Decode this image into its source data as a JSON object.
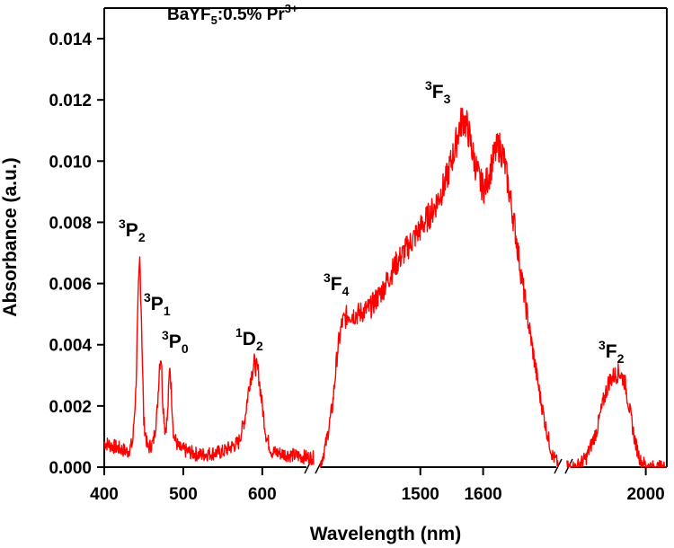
{
  "chart_data": {
    "type": "line",
    "title_parts": [
      "BaYF",
      "5",
      ":0.5% Pr",
      "3+"
    ],
    "xlabel": "Wavelength (nm)",
    "ylabel": "Absorbance (a.u.)",
    "ylim": [
      0,
      0.015
    ],
    "series_color": "#ff0000",
    "x_tick_labels": [
      "400",
      "500",
      "600",
      "1500",
      "1600",
      "2000"
    ],
    "y_tick_labels": [
      "0.000",
      "0.002",
      "0.004",
      "0.006",
      "0.008",
      "0.010",
      "0.012",
      "0.014"
    ],
    "y_ticks": [
      0,
      0.002,
      0.004,
      0.006,
      0.008,
      0.01,
      0.012,
      0.014
    ],
    "segments": [
      {
        "name": "visible",
        "xlim": [
          400,
          665
        ],
        "ticks": [
          400,
          500,
          600
        ],
        "points": [
          [
            400,
            0.0008
          ],
          [
            420,
            0.0006
          ],
          [
            430,
            0.0005
          ],
          [
            436,
            0.0008
          ],
          [
            440,
            0.0025
          ],
          [
            443,
            0.0055
          ],
          [
            445,
            0.0068
          ],
          [
            447,
            0.005
          ],
          [
            450,
            0.0015
          ],
          [
            455,
            0.0006
          ],
          [
            462,
            0.0008
          ],
          [
            467,
            0.0018
          ],
          [
            470,
            0.0034
          ],
          [
            472,
            0.0037
          ],
          [
            474,
            0.0022
          ],
          [
            477,
            0.0012
          ],
          [
            480,
            0.0016
          ],
          [
            483,
            0.0034
          ],
          [
            485,
            0.0024
          ],
          [
            488,
            0.001
          ],
          [
            495,
            0.0006
          ],
          [
            520,
            0.0004
          ],
          [
            550,
            0.0005
          ],
          [
            570,
            0.0008
          ],
          [
            578,
            0.0016
          ],
          [
            584,
            0.0028
          ],
          [
            590,
            0.0034
          ],
          [
            595,
            0.0031
          ],
          [
            600,
            0.002
          ],
          [
            605,
            0.001
          ],
          [
            612,
            0.0005
          ],
          [
            635,
            0.0004
          ],
          [
            665,
            0.0003
          ]
        ]
      },
      {
        "name": "near-ir",
        "xlim": [
          1330,
          1728
        ],
        "ticks": [
          1500,
          1600
        ],
        "points": [
          [
            1340,
            0
          ],
          [
            1350,
            0.0008
          ],
          [
            1360,
            0.002
          ],
          [
            1368,
            0.0038
          ],
          [
            1375,
            0.0047
          ],
          [
            1385,
            0.005
          ],
          [
            1400,
            0.005
          ],
          [
            1420,
            0.0052
          ],
          [
            1440,
            0.0058
          ],
          [
            1460,
            0.0066
          ],
          [
            1480,
            0.0072
          ],
          [
            1500,
            0.0078
          ],
          [
            1520,
            0.0084
          ],
          [
            1540,
            0.0093
          ],
          [
            1555,
            0.0104
          ],
          [
            1562,
            0.0111
          ],
          [
            1568,
            0.0114
          ],
          [
            1575,
            0.0111
          ],
          [
            1585,
            0.0101
          ],
          [
            1595,
            0.0093
          ],
          [
            1602,
            0.0091
          ],
          [
            1610,
            0.0096
          ],
          [
            1618,
            0.0102
          ],
          [
            1625,
            0.0105
          ],
          [
            1632,
            0.0102
          ],
          [
            1640,
            0.0092
          ],
          [
            1650,
            0.0079
          ],
          [
            1660,
            0.0064
          ],
          [
            1670,
            0.005
          ],
          [
            1680,
            0.0037
          ],
          [
            1690,
            0.0024
          ],
          [
            1700,
            0.0013
          ],
          [
            1710,
            0.0004
          ],
          [
            1720,
            0.0001
          ]
        ]
      },
      {
        "name": "ir",
        "xlim": [
          1765,
          2060
        ],
        "ticks": [
          2000
        ],
        "points": [
          [
            1775,
            0
          ],
          [
            1800,
            0
          ],
          [
            1830,
            0.0003
          ],
          [
            1860,
            0.0012
          ],
          [
            1880,
            0.0022
          ],
          [
            1895,
            0.0028
          ],
          [
            1910,
            0.003
          ],
          [
            1925,
            0.0031
          ],
          [
            1940,
            0.0028
          ],
          [
            1955,
            0.0018
          ],
          [
            1970,
            0.0008
          ],
          [
            1985,
            0.0002
          ],
          [
            2010,
            0
          ],
          [
            2060,
            0
          ]
        ]
      }
    ],
    "annotations": [
      {
        "main": "3",
        "letter": "P",
        "sub": "2"
      },
      {
        "main": "3",
        "letter": "P",
        "sub": "1"
      },
      {
        "main": "3",
        "letter": "P",
        "sub": "0"
      },
      {
        "main": "1",
        "letter": "D",
        "sub": "2"
      },
      {
        "main": "3",
        "letter": "F",
        "sub": "4"
      },
      {
        "main": "3",
        "letter": "F",
        "sub": "3"
      },
      {
        "main": "3",
        "letter": "F",
        "sub": "2"
      }
    ]
  }
}
